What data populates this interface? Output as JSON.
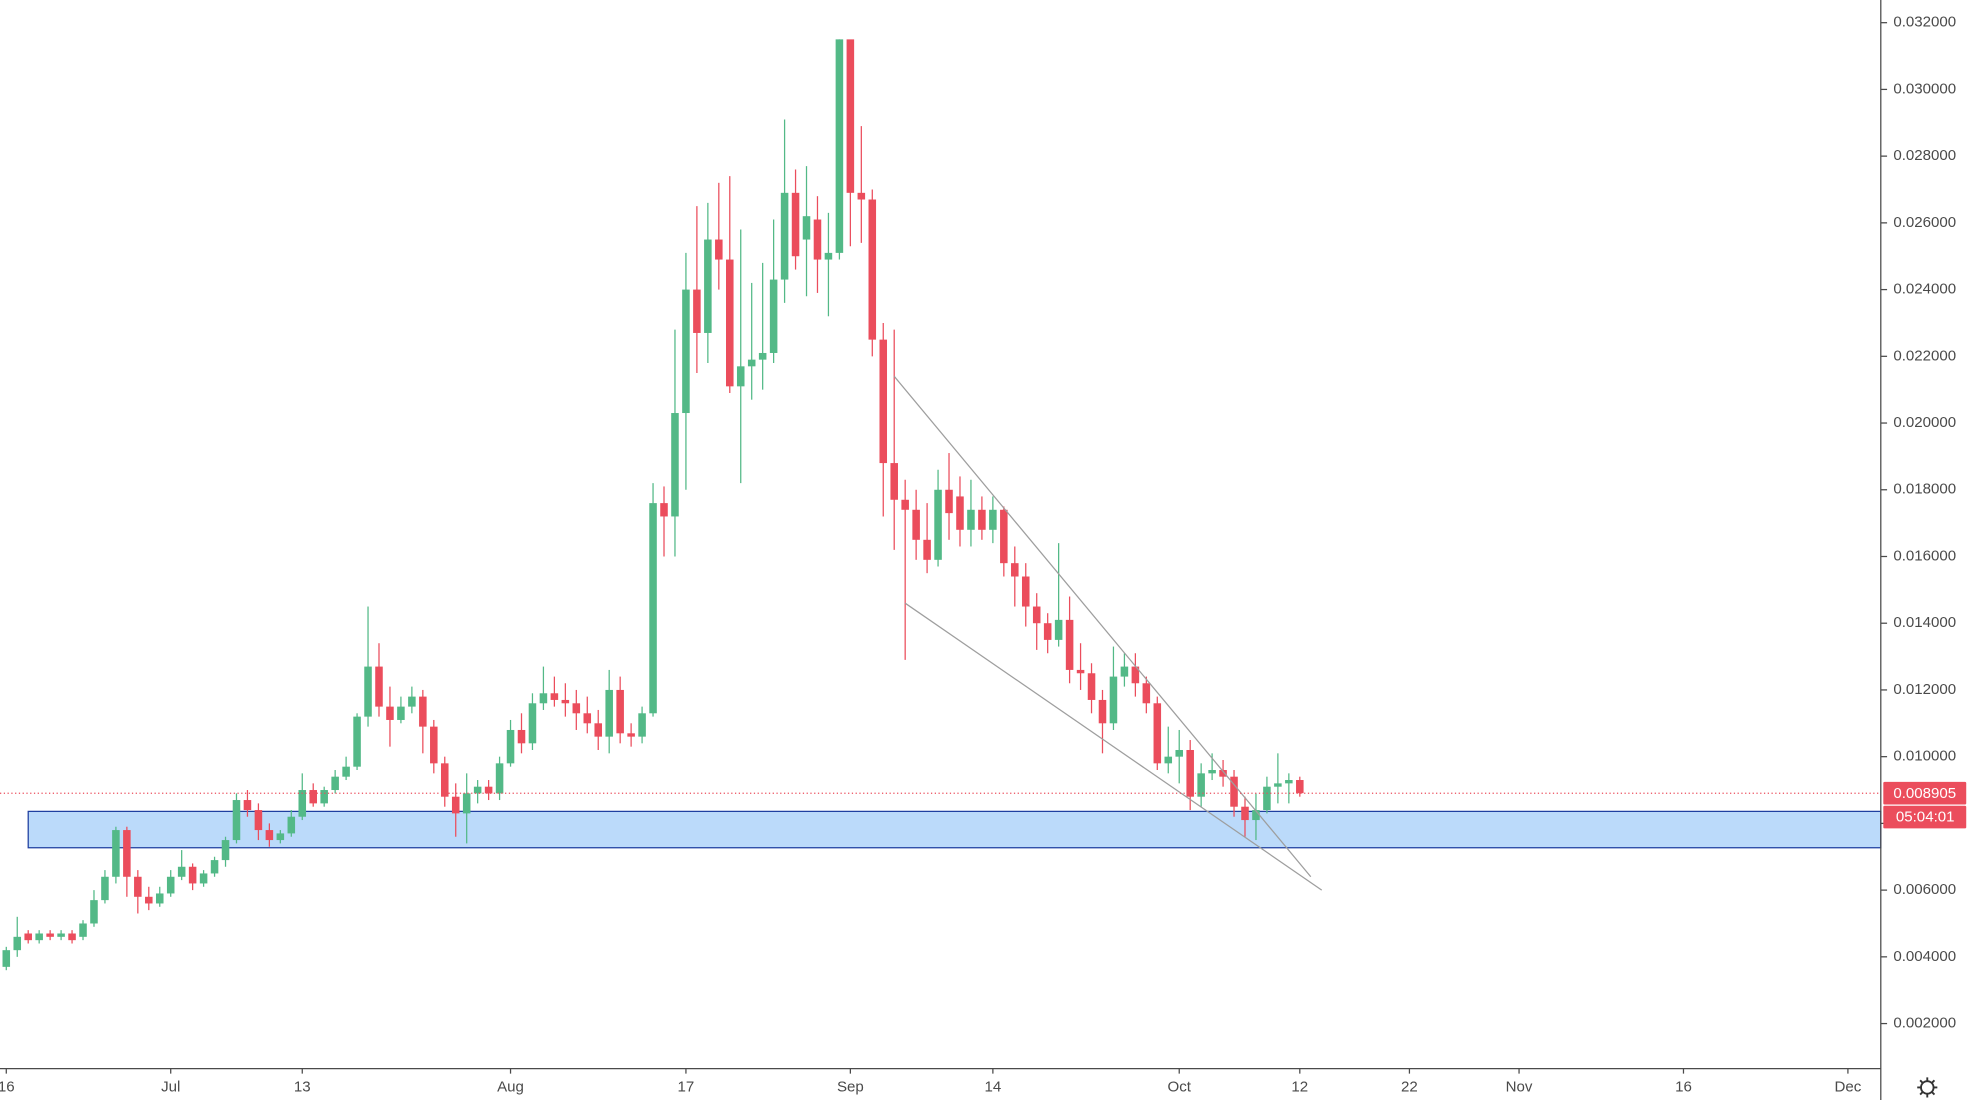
{
  "chart_data": {
    "type": "candlestick",
    "x": [
      "Jun 16",
      "Jun 17",
      "Jun 18",
      "Jun 19",
      "Jun 20",
      "Jun 21",
      "Jun 22",
      "Jun 23",
      "Jun 24",
      "Jun 25",
      "Jun 26",
      "Jun 27",
      "Jun 28",
      "Jun 29",
      "Jun 30",
      "Jul 1",
      "Jul 2",
      "Jul 3",
      "Jul 4",
      "Jul 5",
      "Jul 6",
      "Jul 7",
      "Jul 8",
      "Jul 9",
      "Jul 10",
      "Jul 11",
      "Jul 12",
      "Jul 13",
      "Jul 14",
      "Jul 15",
      "Jul 16",
      "Jul 17",
      "Jul 18",
      "Jul 19",
      "Jul 20",
      "Jul 21",
      "Jul 22",
      "Jul 23",
      "Jul 24",
      "Jul 25",
      "Jul 26",
      "Jul 27",
      "Jul 28",
      "Jul 29",
      "Jul 30",
      "Jul 31",
      "Aug 1",
      "Aug 2",
      "Aug 3",
      "Aug 4",
      "Aug 5",
      "Aug 6",
      "Aug 7",
      "Aug 8",
      "Aug 9",
      "Aug 10",
      "Aug 11",
      "Aug 12",
      "Aug 13",
      "Aug 14",
      "Aug 15",
      "Aug 16",
      "Aug 17",
      "Aug 18",
      "Aug 19",
      "Aug 20",
      "Aug 21",
      "Aug 22",
      "Aug 23",
      "Aug 24",
      "Aug 25",
      "Aug 26",
      "Aug 27",
      "Aug 28",
      "Aug 29",
      "Aug 30",
      "Aug 31",
      "Sep 1",
      "Sep 2",
      "Sep 3",
      "Sep 4",
      "Sep 5",
      "Sep 6",
      "Sep 7",
      "Sep 8",
      "Sep 9",
      "Sep 10",
      "Sep 11",
      "Sep 12",
      "Sep 13",
      "Sep 14",
      "Sep 15",
      "Sep 16",
      "Sep 17",
      "Sep 18",
      "Sep 19",
      "Sep 20",
      "Sep 21",
      "Sep 22",
      "Sep 23",
      "Sep 24",
      "Sep 25",
      "Sep 26",
      "Sep 27",
      "Sep 28",
      "Sep 29",
      "Sep 30",
      "Oct 1",
      "Oct 2",
      "Oct 3",
      "Oct 4",
      "Oct 5",
      "Oct 6",
      "Oct 7",
      "Oct 8",
      "Oct 9",
      "Oct 10",
      "Oct 11",
      "Oct 12"
    ],
    "open": [
      0.0037,
      0.0042,
      0.0047,
      0.0045,
      0.0047,
      0.0046,
      0.0047,
      0.0046,
      0.005,
      0.0057,
      0.0064,
      0.0078,
      0.0064,
      0.0058,
      0.0056,
      0.0059,
      0.0064,
      0.0067,
      0.0062,
      0.0065,
      0.0069,
      0.0075,
      0.0087,
      0.0084,
      0.0078,
      0.0075,
      0.0077,
      0.0082,
      0.009,
      0.0086,
      0.009,
      0.0094,
      0.0097,
      0.0112,
      0.0127,
      0.0115,
      0.0111,
      0.0115,
      0.0118,
      0.0109,
      0.0098,
      0.0088,
      0.0083,
      0.0089,
      0.0091,
      0.0089,
      0.0098,
      0.0108,
      0.0104,
      0.0116,
      0.0119,
      0.0117,
      0.0116,
      0.0113,
      0.011,
      0.0106,
      0.012,
      0.0107,
      0.0106,
      0.0113,
      0.0176,
      0.0172,
      0.0203,
      0.024,
      0.0227,
      0.0255,
      0.0249,
      0.0211,
      0.0217,
      0.0219,
      0.0221,
      0.0243,
      0.0269,
      0.0255,
      0.0261,
      0.0249,
      0.0251,
      0.0315,
      0.0269,
      0.0267,
      0.0225,
      0.0188,
      0.0177,
      0.0174,
      0.0165,
      0.0159,
      0.018,
      0.0178,
      0.0168,
      0.0174,
      0.0168,
      0.0174,
      0.0158,
      0.0154,
      0.0145,
      0.014,
      0.0135,
      0.0141,
      0.0126,
      0.0125,
      0.0117,
      0.011,
      0.0124,
      0.0127,
      0.0122,
      0.0116,
      0.0098,
      0.01,
      0.0102,
      0.0088,
      0.0095,
      0.0096,
      0.0094,
      0.0085,
      0.0081,
      0.0084,
      0.0091,
      0.0092,
      0.0093
    ],
    "high": [
      0.0043,
      0.0052,
      0.0048,
      0.0048,
      0.0048,
      0.0048,
      0.0048,
      0.0051,
      0.006,
      0.0066,
      0.0079,
      0.0079,
      0.0066,
      0.0061,
      0.0061,
      0.0066,
      0.0072,
      0.0068,
      0.0066,
      0.007,
      0.0076,
      0.0089,
      0.009,
      0.0086,
      0.008,
      0.0078,
      0.0084,
      0.0095,
      0.0092,
      0.0091,
      0.0096,
      0.01,
      0.0113,
      0.0145,
      0.0134,
      0.0121,
      0.0118,
      0.0121,
      0.012,
      0.0111,
      0.01,
      0.0092,
      0.0095,
      0.0093,
      0.0093,
      0.01,
      0.0111,
      0.0113,
      0.0119,
      0.0127,
      0.0124,
      0.0122,
      0.012,
      0.0118,
      0.0114,
      0.0126,
      0.0124,
      0.011,
      0.0115,
      0.0182,
      0.0181,
      0.0228,
      0.0251,
      0.0265,
      0.0266,
      0.0272,
      0.0274,
      0.0258,
      0.0242,
      0.0248,
      0.0261,
      0.0291,
      0.0276,
      0.0277,
      0.0268,
      0.0263,
      0.0315,
      0.0314,
      0.0289,
      0.027,
      0.023,
      0.0228,
      0.0183,
      0.018,
      0.0176,
      0.0186,
      0.0191,
      0.0184,
      0.0183,
      0.0178,
      0.0178,
      0.0175,
      0.0163,
      0.0158,
      0.0149,
      0.0143,
      0.0164,
      0.0148,
      0.0134,
      0.0128,
      0.012,
      0.0133,
      0.0131,
      0.0131,
      0.0124,
      0.0118,
      0.0109,
      0.0108,
      0.0105,
      0.0098,
      0.0101,
      0.0099,
      0.0096,
      0.0088,
      0.0089,
      0.0094,
      0.0101,
      0.0095,
      0.0094
    ],
    "low": [
      0.0036,
      0.004,
      0.0044,
      0.0044,
      0.0045,
      0.0045,
      0.0044,
      0.0045,
      0.0049,
      0.0056,
      0.0062,
      0.0058,
      0.0053,
      0.0054,
      0.0055,
      0.0058,
      0.0063,
      0.006,
      0.0061,
      0.0064,
      0.0067,
      0.0074,
      0.0082,
      0.0075,
      0.0073,
      0.0074,
      0.0076,
      0.0081,
      0.0085,
      0.0085,
      0.0089,
      0.0093,
      0.0096,
      0.0109,
      0.0112,
      0.0103,
      0.011,
      0.0113,
      0.0101,
      0.0095,
      0.0085,
      0.0076,
      0.0074,
      0.0086,
      0.0087,
      0.0087,
      0.0097,
      0.0101,
      0.0102,
      0.0114,
      0.0115,
      0.0112,
      0.0108,
      0.0107,
      0.0102,
      0.0101,
      0.0104,
      0.0103,
      0.0104,
      0.0112,
      0.016,
      0.016,
      0.018,
      0.0215,
      0.0218,
      0.024,
      0.0209,
      0.0182,
      0.0207,
      0.021,
      0.0218,
      0.0236,
      0.0246,
      0.0238,
      0.0239,
      0.0232,
      0.0249,
      0.0253,
      0.0254,
      0.022,
      0.0172,
      0.0162,
      0.0129,
      0.0159,
      0.0155,
      0.0157,
      0.0165,
      0.0163,
      0.0163,
      0.0165,
      0.0164,
      0.0154,
      0.0145,
      0.0139,
      0.0132,
      0.0131,
      0.0133,
      0.0122,
      0.012,
      0.0113,
      0.0101,
      0.0108,
      0.0121,
      0.0118,
      0.0113,
      0.0096,
      0.0095,
      0.0092,
      0.0084,
      0.0085,
      0.0093,
      0.0091,
      0.0082,
      0.0076,
      0.0075,
      0.0083,
      0.0086,
      0.0086,
      0.0088
    ],
    "close": [
      0.0042,
      0.0046,
      0.0045,
      0.0047,
      0.0046,
      0.0047,
      0.0045,
      0.005,
      0.0057,
      0.0064,
      0.0078,
      0.0064,
      0.0058,
      0.0056,
      0.0059,
      0.0064,
      0.0067,
      0.0062,
      0.0065,
      0.0069,
      0.0075,
      0.0087,
      0.0084,
      0.0078,
      0.0075,
      0.0077,
      0.0082,
      0.009,
      0.0086,
      0.009,
      0.0094,
      0.0097,
      0.0112,
      0.0127,
      0.0115,
      0.0111,
      0.0115,
      0.0118,
      0.0109,
      0.0098,
      0.0088,
      0.0083,
      0.0089,
      0.0091,
      0.0089,
      0.0098,
      0.0108,
      0.0104,
      0.0116,
      0.0119,
      0.0117,
      0.0116,
      0.0113,
      0.011,
      0.0106,
      0.012,
      0.0107,
      0.0106,
      0.0113,
      0.0176,
      0.0172,
      0.0203,
      0.024,
      0.0227,
      0.0255,
      0.0249,
      0.0211,
      0.0217,
      0.0219,
      0.0221,
      0.0243,
      0.0269,
      0.025,
      0.0262,
      0.0249,
      0.0251,
      0.0315,
      0.0269,
      0.0267,
      0.0225,
      0.0188,
      0.0177,
      0.0174,
      0.0165,
      0.0159,
      0.018,
      0.0173,
      0.0168,
      0.0174,
      0.0168,
      0.0174,
      0.0158,
      0.0154,
      0.0145,
      0.014,
      0.0135,
      0.0141,
      0.0126,
      0.0125,
      0.0117,
      0.011,
      0.0124,
      0.0127,
      0.0122,
      0.0116,
      0.0098,
      0.01,
      0.0102,
      0.0088,
      0.0095,
      0.0096,
      0.0094,
      0.0085,
      0.0081,
      0.0084,
      0.0091,
      0.0092,
      0.0093,
      0.008905
    ],
    "up_color": "#53b987",
    "down_color": "#eb4d5c",
    "xlim": [
      "Jun 16",
      "Dec 4"
    ],
    "xticks": [
      {
        "value": "Jun 16",
        "label": "16"
      },
      {
        "value": "Jul 1",
        "label": "Jul"
      },
      {
        "value": "Jul 13",
        "label": "13"
      },
      {
        "value": "Aug 1",
        "label": "Aug"
      },
      {
        "value": "Aug 17",
        "label": "17"
      },
      {
        "value": "Sep 1",
        "label": "Sep"
      },
      {
        "value": "Sep 14",
        "label": "14"
      },
      {
        "value": "Oct 1",
        "label": "Oct"
      },
      {
        "value": "Oct 12",
        "label": "12"
      },
      {
        "value": "Oct 22",
        "label": "22"
      },
      {
        "value": "Nov 1",
        "label": "Nov"
      },
      {
        "value": "Nov 16",
        "label": "16"
      },
      {
        "value": "Dec 1",
        "label": "Dec"
      }
    ],
    "ylim": [
      0.00065,
      0.03268
    ],
    "yticks": [
      {
        "value": 0.002,
        "label": "0.002000"
      },
      {
        "value": 0.004,
        "label": "0.004000"
      },
      {
        "value": 0.006,
        "label": "0.006000"
      },
      {
        "value": 0.008,
        "label": "0.008000"
      },
      {
        "value": 0.01,
        "label": "0.010000"
      },
      {
        "value": 0.012,
        "label": "0.012000"
      },
      {
        "value": 0.014,
        "label": "0.014000"
      },
      {
        "value": 0.016,
        "label": "0.016000"
      },
      {
        "value": 0.018,
        "label": "0.018000"
      },
      {
        "value": 0.02,
        "label": "0.020000"
      },
      {
        "value": 0.022,
        "label": "0.022000"
      },
      {
        "value": 0.024,
        "label": "0.024000"
      },
      {
        "value": 0.026,
        "label": "0.026000"
      },
      {
        "value": 0.028,
        "label": "0.028000"
      },
      {
        "value": 0.03,
        "label": "0.030000"
      },
      {
        "value": 0.032,
        "label": "0.032000"
      }
    ],
    "last_price": {
      "value": 0.008905,
      "label": "0.008905"
    },
    "countdown": "05:04:01",
    "zone": {
      "start": "Jun 18",
      "low": 0.00727,
      "high": 0.00836,
      "color": "#bbdafa",
      "border": "#1f3fa0"
    },
    "trend_lines": [
      {
        "color": "#9e9e9e",
        "points": [
          [
            "Sep 5",
            0.0214
          ],
          [
            "Oct 13",
            0.0064
          ]
        ]
      },
      {
        "color": "#9e9e9e",
        "points": [
          [
            "Sep 6",
            0.0146
          ],
          [
            "Oct 14",
            0.006
          ]
        ]
      }
    ]
  }
}
